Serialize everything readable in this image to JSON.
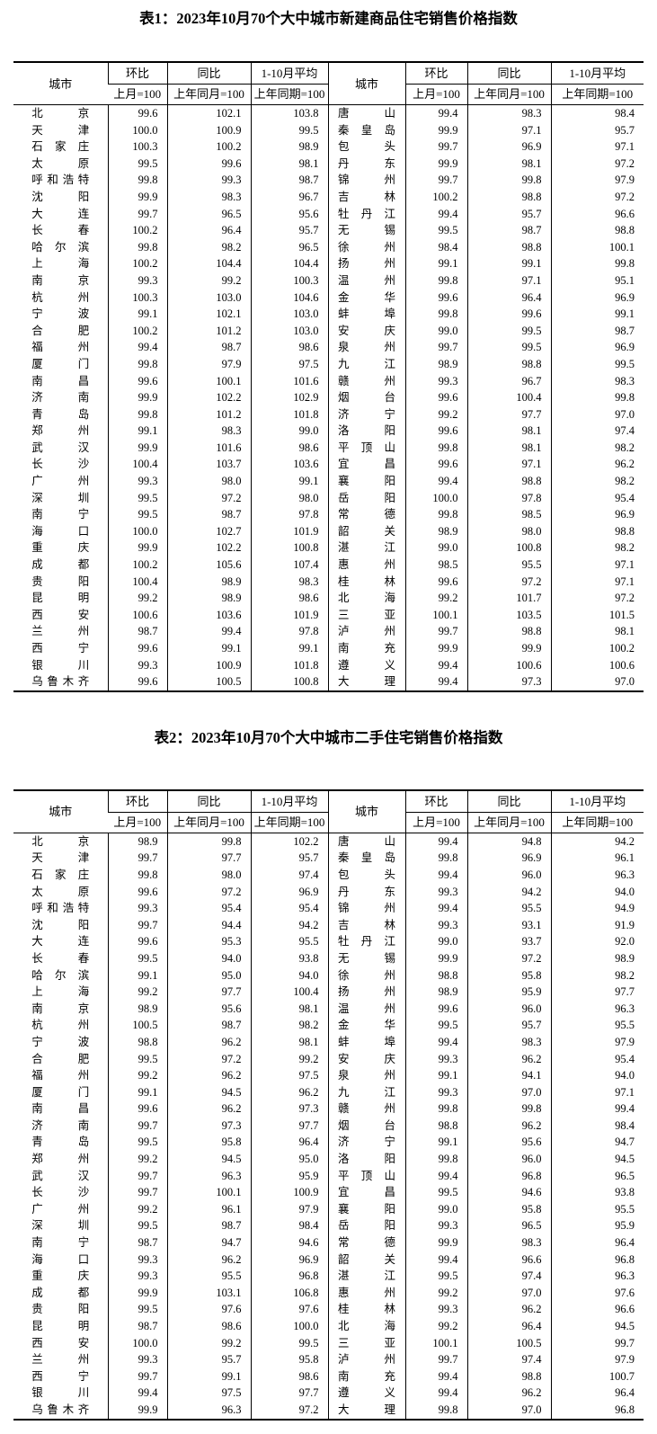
{
  "headers": {
    "city": "城市",
    "mom": "环比",
    "mom_base": "上月=100",
    "yoy": "同比",
    "yoy_base": "上年同月=100",
    "avg": "1-10月平均",
    "avg_base": "上年同期=100"
  },
  "table1": {
    "title": "表1：2023年10月70个大中城市新建商品住宅销售价格指数",
    "rows": [
      [
        "北京",
        "99.6",
        "102.1",
        "103.8",
        "唐山",
        "99.4",
        "98.3",
        "98.4"
      ],
      [
        "天津",
        "100.0",
        "100.9",
        "99.5",
        "秦皇岛",
        "99.9",
        "97.1",
        "95.7"
      ],
      [
        "石家庄",
        "100.3",
        "100.2",
        "98.9",
        "包头",
        "99.7",
        "96.9",
        "97.1"
      ],
      [
        "太原",
        "99.5",
        "99.6",
        "98.1",
        "丹东",
        "99.9",
        "98.1",
        "97.2"
      ],
      [
        "呼和浩特",
        "99.8",
        "99.3",
        "98.7",
        "锦州",
        "99.7",
        "99.8",
        "97.9"
      ],
      [
        "沈阳",
        "99.9",
        "98.3",
        "96.7",
        "吉林",
        "100.2",
        "98.8",
        "97.2"
      ],
      [
        "大连",
        "99.7",
        "96.5",
        "95.6",
        "牡丹江",
        "99.4",
        "95.7",
        "96.6"
      ],
      [
        "长春",
        "100.2",
        "96.4",
        "95.7",
        "无锡",
        "99.5",
        "98.7",
        "98.8"
      ],
      [
        "哈尔滨",
        "99.8",
        "98.2",
        "96.5",
        "徐州",
        "98.4",
        "98.8",
        "100.1"
      ],
      [
        "上海",
        "100.2",
        "104.4",
        "104.4",
        "扬州",
        "99.1",
        "99.1",
        "99.8"
      ],
      [
        "南京",
        "99.3",
        "99.2",
        "100.3",
        "温州",
        "99.8",
        "97.1",
        "95.1"
      ],
      [
        "杭州",
        "100.3",
        "103.0",
        "104.6",
        "金华",
        "99.6",
        "96.4",
        "96.9"
      ],
      [
        "宁波",
        "99.1",
        "102.1",
        "103.0",
        "蚌埠",
        "99.8",
        "99.6",
        "99.1"
      ],
      [
        "合肥",
        "100.2",
        "101.2",
        "103.0",
        "安庆",
        "99.0",
        "99.5",
        "98.7"
      ],
      [
        "福州",
        "99.4",
        "98.7",
        "98.6",
        "泉州",
        "99.7",
        "99.5",
        "96.9"
      ],
      [
        "厦门",
        "99.8",
        "97.9",
        "97.5",
        "九江",
        "98.9",
        "98.8",
        "99.5"
      ],
      [
        "南昌",
        "99.6",
        "100.1",
        "101.6",
        "赣州",
        "99.3",
        "96.7",
        "98.3"
      ],
      [
        "济南",
        "99.9",
        "102.2",
        "102.9",
        "烟台",
        "99.6",
        "100.4",
        "99.8"
      ],
      [
        "青岛",
        "99.8",
        "101.2",
        "101.8",
        "济宁",
        "99.2",
        "97.7",
        "97.0"
      ],
      [
        "郑州",
        "99.1",
        "98.3",
        "99.0",
        "洛阳",
        "99.6",
        "98.1",
        "97.4"
      ],
      [
        "武汉",
        "99.9",
        "101.6",
        "98.6",
        "平顶山",
        "99.8",
        "98.1",
        "98.2"
      ],
      [
        "长沙",
        "100.4",
        "103.7",
        "103.6",
        "宜昌",
        "99.6",
        "97.1",
        "96.2"
      ],
      [
        "广州",
        "99.3",
        "98.0",
        "99.1",
        "襄阳",
        "99.4",
        "98.8",
        "98.2"
      ],
      [
        "深圳",
        "99.5",
        "97.2",
        "98.0",
        "岳阳",
        "100.0",
        "97.8",
        "95.4"
      ],
      [
        "南宁",
        "99.5",
        "98.7",
        "97.8",
        "常德",
        "99.8",
        "98.5",
        "96.9"
      ],
      [
        "海口",
        "100.0",
        "102.7",
        "101.9",
        "韶关",
        "98.9",
        "98.0",
        "98.8"
      ],
      [
        "重庆",
        "99.9",
        "102.2",
        "100.8",
        "湛江",
        "99.0",
        "100.8",
        "98.2"
      ],
      [
        "成都",
        "100.2",
        "105.6",
        "107.4",
        "惠州",
        "98.5",
        "95.5",
        "97.1"
      ],
      [
        "贵阳",
        "100.4",
        "98.9",
        "98.3",
        "桂林",
        "99.6",
        "97.2",
        "97.1"
      ],
      [
        "昆明",
        "99.2",
        "98.9",
        "98.6",
        "北海",
        "99.2",
        "101.7",
        "97.2"
      ],
      [
        "西安",
        "100.6",
        "103.6",
        "101.9",
        "三亚",
        "100.1",
        "103.5",
        "101.5"
      ],
      [
        "兰州",
        "98.7",
        "99.4",
        "97.8",
        "泸州",
        "99.7",
        "98.8",
        "98.1"
      ],
      [
        "西宁",
        "99.6",
        "99.1",
        "99.1",
        "南充",
        "99.9",
        "99.9",
        "100.2"
      ],
      [
        "银川",
        "99.3",
        "100.9",
        "101.8",
        "遵义",
        "99.4",
        "100.6",
        "100.6"
      ],
      [
        "乌鲁木齐",
        "99.6",
        "100.5",
        "100.8",
        "大理",
        "99.4",
        "97.3",
        "97.0"
      ]
    ]
  },
  "table2": {
    "title": "表2：2023年10月70个大中城市二手住宅销售价格指数",
    "rows": [
      [
        "北京",
        "98.9",
        "99.8",
        "102.2",
        "唐山",
        "99.4",
        "94.8",
        "94.2"
      ],
      [
        "天津",
        "99.7",
        "97.7",
        "95.7",
        "秦皇岛",
        "99.8",
        "96.9",
        "96.1"
      ],
      [
        "石家庄",
        "99.8",
        "98.0",
        "97.4",
        "包头",
        "99.4",
        "96.0",
        "96.3"
      ],
      [
        "太原",
        "99.6",
        "97.2",
        "96.9",
        "丹东",
        "99.3",
        "94.2",
        "94.0"
      ],
      [
        "呼和浩特",
        "99.3",
        "95.4",
        "95.4",
        "锦州",
        "99.4",
        "95.5",
        "94.9"
      ],
      [
        "沈阳",
        "99.7",
        "94.4",
        "94.2",
        "吉林",
        "99.3",
        "93.1",
        "91.9"
      ],
      [
        "大连",
        "99.6",
        "95.3",
        "95.5",
        "牡丹江",
        "99.0",
        "93.7",
        "92.0"
      ],
      [
        "长春",
        "99.5",
        "94.0",
        "93.8",
        "无锡",
        "99.9",
        "97.2",
        "98.9"
      ],
      [
        "哈尔滨",
        "99.1",
        "95.0",
        "94.0",
        "徐州",
        "98.8",
        "95.8",
        "98.2"
      ],
      [
        "上海",
        "99.2",
        "97.7",
        "100.4",
        "扬州",
        "98.9",
        "95.9",
        "97.7"
      ],
      [
        "南京",
        "98.9",
        "95.6",
        "98.1",
        "温州",
        "99.6",
        "96.0",
        "96.3"
      ],
      [
        "杭州",
        "100.5",
        "98.7",
        "98.2",
        "金华",
        "99.5",
        "95.7",
        "95.5"
      ],
      [
        "宁波",
        "98.8",
        "96.2",
        "98.1",
        "蚌埠",
        "99.4",
        "98.3",
        "97.9"
      ],
      [
        "合肥",
        "99.5",
        "97.2",
        "99.2",
        "安庆",
        "99.3",
        "96.2",
        "95.4"
      ],
      [
        "福州",
        "99.2",
        "96.2",
        "97.5",
        "泉州",
        "99.1",
        "94.1",
        "94.0"
      ],
      [
        "厦门",
        "99.1",
        "94.5",
        "96.2",
        "九江",
        "99.3",
        "97.0",
        "97.1"
      ],
      [
        "南昌",
        "99.6",
        "96.2",
        "97.3",
        "赣州",
        "99.8",
        "99.8",
        "99.4"
      ],
      [
        "济南",
        "99.7",
        "97.3",
        "97.7",
        "烟台",
        "98.8",
        "96.2",
        "98.4"
      ],
      [
        "青岛",
        "99.5",
        "95.8",
        "96.4",
        "济宁",
        "99.1",
        "95.6",
        "94.7"
      ],
      [
        "郑州",
        "99.2",
        "94.5",
        "95.0",
        "洛阳",
        "99.8",
        "96.0",
        "94.5"
      ],
      [
        "武汉",
        "99.7",
        "96.3",
        "95.9",
        "平顶山",
        "99.4",
        "96.8",
        "96.5"
      ],
      [
        "长沙",
        "99.7",
        "100.1",
        "100.9",
        "宜昌",
        "99.5",
        "94.6",
        "93.8"
      ],
      [
        "广州",
        "99.2",
        "96.1",
        "97.9",
        "襄阳",
        "99.0",
        "95.8",
        "95.5"
      ],
      [
        "深圳",
        "99.5",
        "98.7",
        "98.4",
        "岳阳",
        "99.3",
        "96.5",
        "95.9"
      ],
      [
        "南宁",
        "98.7",
        "94.7",
        "94.6",
        "常德",
        "99.9",
        "98.3",
        "96.4"
      ],
      [
        "海口",
        "99.3",
        "96.2",
        "96.9",
        "韶关",
        "99.4",
        "96.6",
        "96.8"
      ],
      [
        "重庆",
        "99.3",
        "95.5",
        "96.8",
        "湛江",
        "99.5",
        "97.4",
        "96.3"
      ],
      [
        "成都",
        "99.9",
        "103.1",
        "106.8",
        "惠州",
        "99.2",
        "97.0",
        "97.6"
      ],
      [
        "贵阳",
        "99.5",
        "97.6",
        "97.6",
        "桂林",
        "99.3",
        "96.2",
        "96.6"
      ],
      [
        "昆明",
        "98.7",
        "98.6",
        "100.0",
        "北海",
        "99.2",
        "96.4",
        "94.5"
      ],
      [
        "西安",
        "100.0",
        "99.2",
        "99.5",
        "三亚",
        "100.1",
        "100.5",
        "99.7"
      ],
      [
        "兰州",
        "99.3",
        "95.7",
        "95.8",
        "泸州",
        "99.7",
        "97.4",
        "97.9"
      ],
      [
        "西宁",
        "99.7",
        "99.1",
        "98.6",
        "南充",
        "99.4",
        "98.8",
        "100.7"
      ],
      [
        "银川",
        "99.4",
        "97.5",
        "97.7",
        "遵义",
        "99.4",
        "96.2",
        "96.4"
      ],
      [
        "乌鲁木齐",
        "99.9",
        "96.3",
        "97.2",
        "大理",
        "99.8",
        "97.0",
        "96.8"
      ]
    ]
  }
}
